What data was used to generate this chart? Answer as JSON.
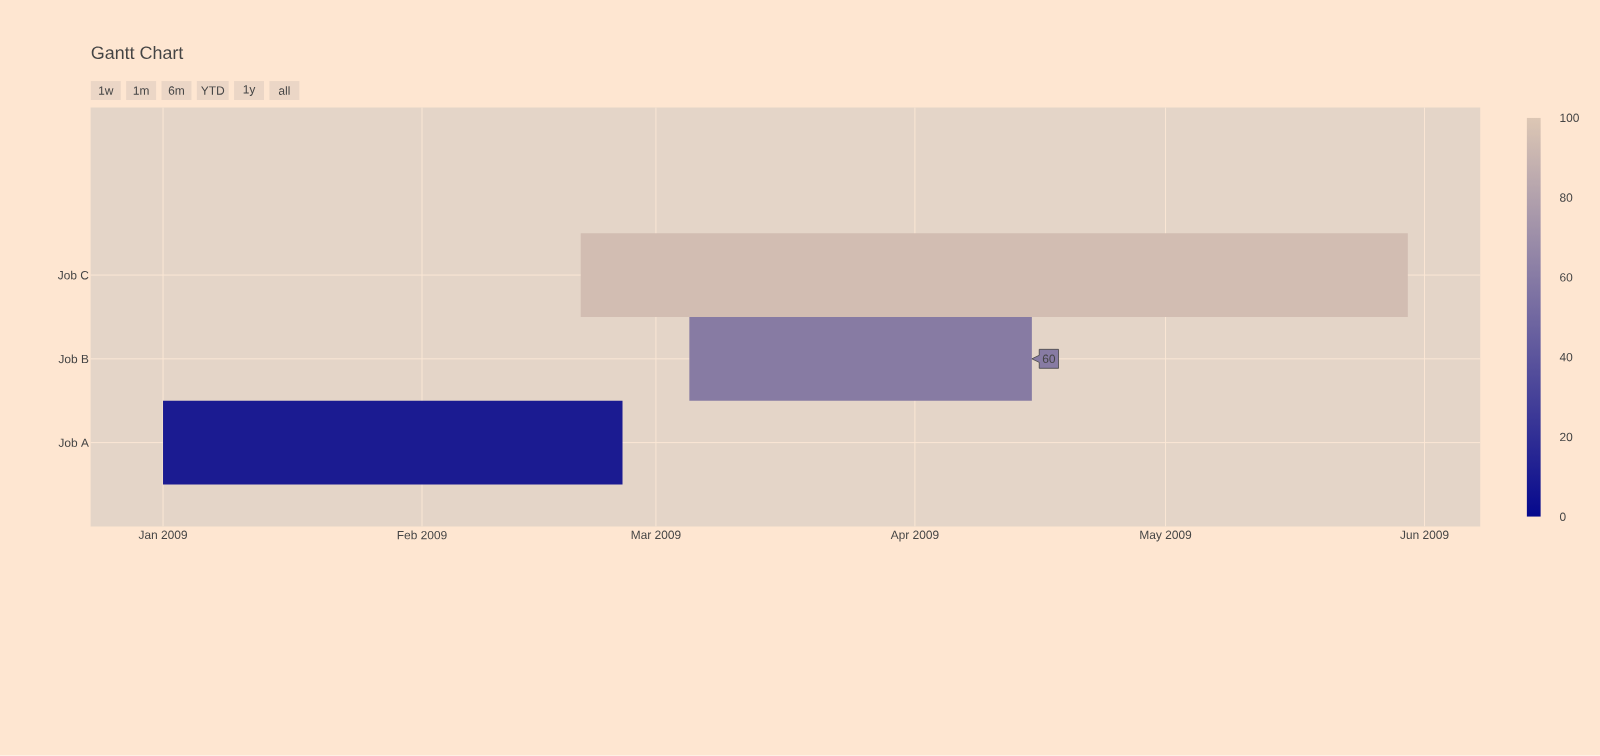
{
  "chart_data": {
    "type": "bar",
    "title": "Gantt Chart",
    "orientation": "horizontal",
    "categories": [
      "Job C",
      "Job B",
      "Job A"
    ],
    "base": [
      14295,
      14308,
      14245
    ],
    "values": [
      99,
      41,
      55
    ],
    "colors": [
      "#d2bdb2",
      "#877ba3",
      "#1b1b91"
    ],
    "cvalues": [
      95,
      60,
      10
    ],
    "xlim": [
      "2008-12-23T08:00",
      "2009-06-07T16:00"
    ],
    "xticks": [
      {
        "value": "2009-01-01",
        "label": "Jan 2009"
      },
      {
        "value": "2009-02-01",
        "label": "Feb 2009"
      },
      {
        "value": "2009-03-01",
        "label": "Mar 2009"
      },
      {
        "value": "2009-04-01",
        "label": "Apr 2009"
      },
      {
        "value": "2009-05-01",
        "label": "May 2009"
      },
      {
        "value": "2009-06-01",
        "label": "Jun 2009"
      }
    ],
    "clim": [
      0,
      100
    ],
    "cticks": [
      0,
      20,
      40,
      60,
      80,
      100
    ],
    "grid": true,
    "annotations": [
      "1w",
      "1m",
      "6m",
      "YTD",
      "1y",
      "all",
      {
        "text": "60",
        "x": "2009-04-15",
        "y": "Job B"
      }
    ]
  }
}
